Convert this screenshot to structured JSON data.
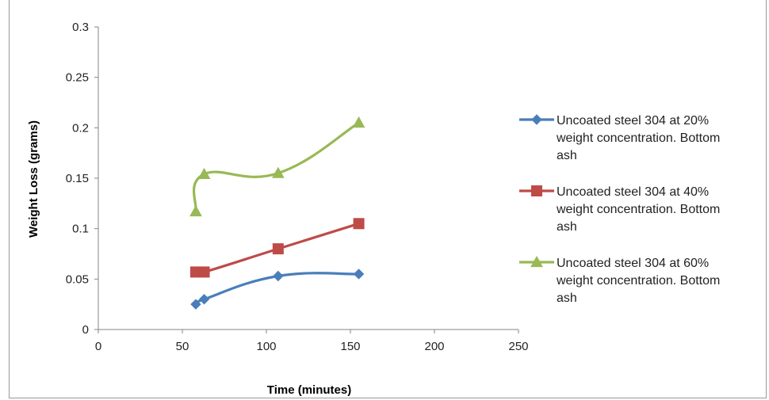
{
  "chart_data": {
    "type": "scatter",
    "title": "",
    "xlabel": "Time (minutes)",
    "ylabel": "Weight Loss (grams)",
    "xlim": [
      0,
      250
    ],
    "ylim": [
      0,
      0.3
    ],
    "xticks": [
      0,
      50,
      100,
      150,
      200,
      250
    ],
    "yticks": [
      0,
      0.05,
      0.1,
      0.15,
      0.2,
      0.25,
      0.3
    ],
    "xtick_labels": [
      "0",
      "50",
      "100",
      "150",
      "200",
      "250"
    ],
    "ytick_labels": [
      "0",
      "0.05",
      "0.1",
      "0.15",
      "0.2",
      "0.25",
      "0.3"
    ],
    "grid": false,
    "legend_position": "right",
    "series": [
      {
        "name": "Uncoated steel 304 at 20% weight concentration. Bottom ash",
        "legend_lines": [
          "Uncoated steel 304 at 20%",
          "weight concentration. Bottom",
          "ash"
        ],
        "color": "#4a7ebb",
        "marker": "diamond",
        "x": [
          58,
          63,
          107,
          155
        ],
        "y": [
          0.025,
          0.03,
          0.053,
          0.055
        ]
      },
      {
        "name": "Uncoated steel 304 at 40% weight concentration. Bottom ash",
        "legend_lines": [
          "Uncoated steel 304 at 40%",
          "weight concentration. Bottom",
          "ash"
        ],
        "color": "#be4b48",
        "marker": "square",
        "x": [
          58,
          63,
          107,
          155
        ],
        "y": [
          0.057,
          0.057,
          0.08,
          0.105
        ]
      },
      {
        "name": "Uncoated steel 304 at 60% weight concentration. Bottom ash",
        "legend_lines": [
          "Uncoated steel 304 at 60%",
          "weight concentration. Bottom",
          "ash"
        ],
        "color": "#98b954",
        "marker": "triangle",
        "x": [
          58,
          63,
          107,
          155
        ],
        "y": [
          0.117,
          0.154,
          0.155,
          0.205
        ]
      }
    ]
  }
}
